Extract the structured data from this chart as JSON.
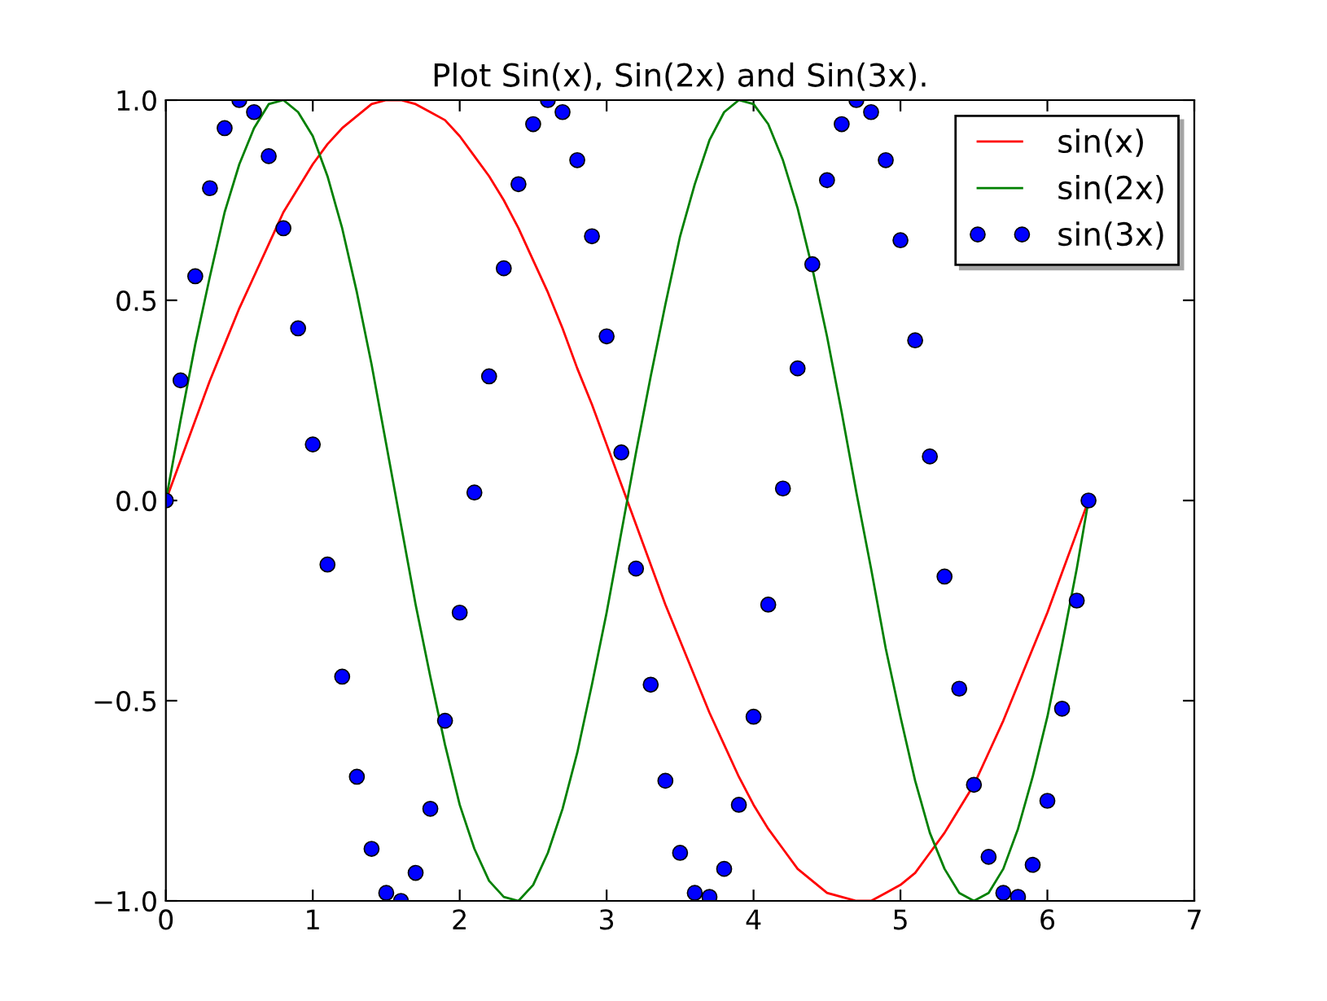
{
  "chart_data": {
    "type": "line",
    "title": "Plot Sin(x), Sin(2x) and Sin(3x).",
    "x": [
      0,
      0.1,
      0.2,
      0.3,
      0.4,
      0.5,
      0.6,
      0.7,
      0.8,
      0.9,
      1.0,
      1.1,
      1.2,
      1.3,
      1.4,
      1.5,
      1.6,
      1.7,
      1.8,
      1.9,
      2.0,
      2.1,
      2.2,
      2.3,
      2.4,
      2.5,
      2.6,
      2.7,
      2.8,
      2.9,
      3.0,
      3.1,
      3.2,
      3.3,
      3.4,
      3.5,
      3.6,
      3.7,
      3.8,
      3.9,
      4.0,
      4.1,
      4.2,
      4.3,
      4.4,
      4.5,
      4.6,
      4.7,
      4.8,
      4.9,
      5.0,
      5.1,
      5.2,
      5.3,
      5.4,
      5.5,
      5.6,
      5.7,
      5.8,
      5.9,
      6.0,
      6.1,
      6.2,
      6.28
    ],
    "series": [
      {
        "name": "sin(x)",
        "color": "#ff0000",
        "values": [
          0,
          0.1,
          0.2,
          0.3,
          0.39,
          0.48,
          0.56,
          0.64,
          0.72,
          0.78,
          0.84,
          0.89,
          0.93,
          0.96,
          0.99,
          1.0,
          1.0,
          0.99,
          0.97,
          0.95,
          0.91,
          0.86,
          0.81,
          0.75,
          0.68,
          0.6,
          0.52,
          0.43,
          0.33,
          0.24,
          0.14,
          0.04,
          -0.06,
          -0.16,
          -0.26,
          -0.35,
          -0.44,
          -0.53,
          -0.61,
          -0.69,
          -0.76,
          -0.82,
          -0.87,
          -0.92,
          -0.95,
          -0.98,
          -0.99,
          -1.0,
          -1.0,
          -0.98,
          -0.96,
          -0.93,
          -0.88,
          -0.83,
          -0.77,
          -0.71,
          -0.63,
          -0.55,
          -0.46,
          -0.37,
          -0.28,
          -0.18,
          -0.08,
          0.0
        ]
      },
      {
        "name": "sin(2x)",
        "color": "#008000",
        "values": [
          0,
          0.2,
          0.39,
          0.56,
          0.72,
          0.84,
          0.93,
          0.99,
          1.0,
          0.97,
          0.91,
          0.81,
          0.68,
          0.52,
          0.34,
          0.14,
          -0.06,
          -0.26,
          -0.44,
          -0.61,
          -0.76,
          -0.87,
          -0.95,
          -0.99,
          -1.0,
          -0.96,
          -0.88,
          -0.77,
          -0.63,
          -0.46,
          -0.28,
          -0.08,
          0.12,
          0.31,
          0.49,
          0.66,
          0.79,
          0.9,
          0.97,
          1.0,
          0.99,
          0.94,
          0.85,
          0.73,
          0.58,
          0.41,
          0.22,
          0.02,
          -0.17,
          -0.37,
          -0.54,
          -0.7,
          -0.83,
          -0.92,
          -0.98,
          -1.0,
          -0.98,
          -0.92,
          -0.82,
          -0.69,
          -0.54,
          -0.36,
          -0.17,
          0.0
        ]
      },
      {
        "name": "sin(3x)",
        "type": "scatter",
        "marker": "circle",
        "color": "#0000ff",
        "values": [
          0,
          0.3,
          0.56,
          0.78,
          0.93,
          1.0,
          0.97,
          0.86,
          0.68,
          0.43,
          0.14,
          -0.16,
          -0.44,
          -0.69,
          -0.87,
          -0.98,
          -1.0,
          -0.93,
          -0.77,
          -0.55,
          -0.28,
          0.02,
          0.31,
          0.58,
          0.79,
          0.94,
          1.0,
          0.97,
          0.85,
          0.66,
          0.41,
          0.12,
          -0.17,
          -0.46,
          -0.7,
          -0.88,
          -0.98,
          -0.99,
          -0.92,
          -0.76,
          -0.54,
          -0.26,
          0.03,
          0.33,
          0.59,
          0.8,
          0.94,
          1.0,
          0.97,
          0.85,
          0.65,
          0.4,
          0.11,
          -0.19,
          -0.47,
          -0.71,
          -0.89,
          -0.98,
          -0.99,
          -0.91,
          -0.75,
          -0.52,
          -0.25,
          0.0
        ]
      }
    ],
    "xlim": [
      0,
      7
    ],
    "xticks": [
      0,
      1,
      2,
      3,
      4,
      5,
      6,
      7
    ],
    "ylim": [
      -1,
      1
    ],
    "yticks": [
      {
        "value": -1.0,
        "label": "−1.0"
      },
      {
        "value": -0.5,
        "label": "−0.5"
      },
      {
        "value": 0.0,
        "label": "0.0"
      },
      {
        "value": 0.5,
        "label": "0.5"
      },
      {
        "value": 1.0,
        "label": "1.0"
      }
    ],
    "grid": false,
    "legend": "top right"
  }
}
